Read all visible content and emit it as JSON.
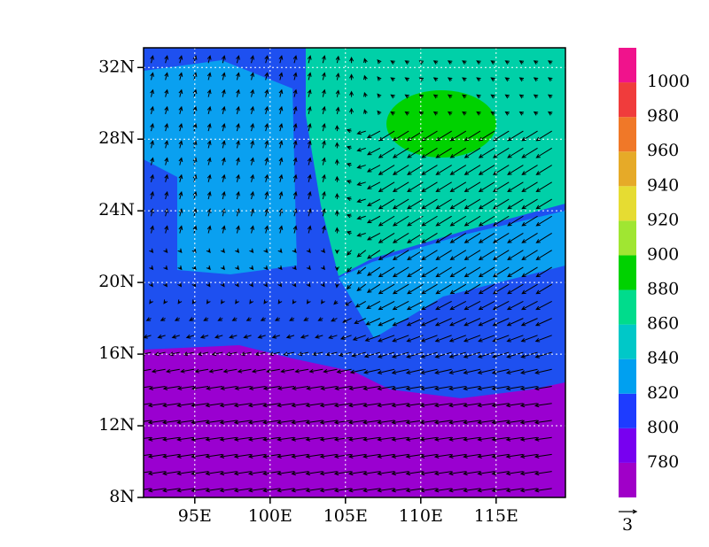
{
  "map": {
    "lonlim": [
      91.6,
      119.6
    ],
    "latlim": [
      8,
      33.1
    ],
    "lon_ticks": [
      {
        "value": 95,
        "label": "95E"
      },
      {
        "value": 100,
        "label": "100E"
      },
      {
        "value": 105,
        "label": "105E"
      },
      {
        "value": 110,
        "label": "110E"
      },
      {
        "value": 115,
        "label": "115E"
      }
    ],
    "lat_ticks": [
      {
        "value": 8,
        "label": "8N"
      },
      {
        "value": 12,
        "label": "12N"
      },
      {
        "value": 16,
        "label": "16N"
      },
      {
        "value": 20,
        "label": "20N"
      },
      {
        "value": 24,
        "label": "24N"
      },
      {
        "value": 28,
        "label": "28N"
      },
      {
        "value": 32,
        "label": "32N"
      }
    ],
    "grid": true,
    "colorbar": {
      "levels": [
        780,
        800,
        820,
        840,
        860,
        880,
        900,
        920,
        940,
        960,
        980,
        1000
      ],
      "colors": [
        "#a000c8",
        "#7800f0",
        "#1e3cff",
        "#00a0f0",
        "#00c8c8",
        "#00dc8c",
        "#00d200",
        "#a0e632",
        "#e6dc32",
        "#e6aa28",
        "#f07828",
        "#f03c3c",
        "#f0138c"
      ]
    },
    "vector_reference": 3
  }
}
